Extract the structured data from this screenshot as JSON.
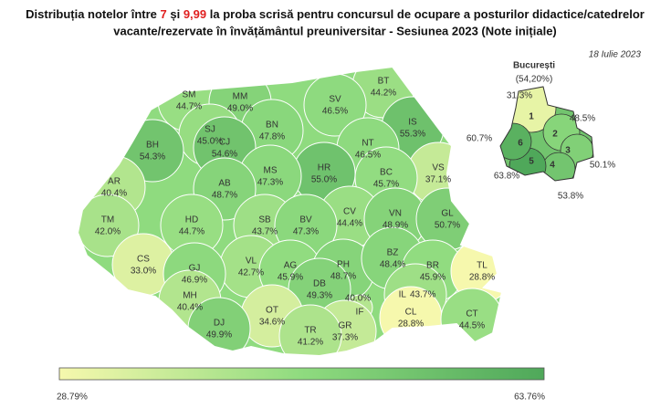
{
  "header": {
    "title_line1": [
      "Distribuția notelor între ",
      "7",
      " și ",
      "9,99",
      " la proba scrisă pentru concursul de ocupare a posturilor didactice/catedrelor"
    ],
    "title_line2": "vacante/rezervate în învățământul preuniversitar - Sesiunea 2023 (Note inițiale)",
    "date": "18 Iulie 2023"
  },
  "map": {
    "colorscale": [
      "#f6f8ad",
      "#8fdb7f",
      "#4fa85a"
    ],
    "counties": [
      {
        "code": "SM",
        "value": 44.7,
        "label": "44.7%"
      },
      {
        "code": "MM",
        "value": 49.0,
        "label": "49.0%"
      },
      {
        "code": "BT",
        "value": 44.2,
        "label": "44.2%"
      },
      {
        "code": "SV",
        "value": 46.5,
        "label": "46.5%"
      },
      {
        "code": "IS",
        "value": 55.3,
        "label": "55.3%"
      },
      {
        "code": "BN",
        "value": 47.8,
        "label": "47.8%"
      },
      {
        "code": "SJ",
        "value": 45.0,
        "label": "45.0%"
      },
      {
        "code": "BH",
        "value": 54.3,
        "label": "54.3%"
      },
      {
        "code": "CJ",
        "value": 54.6,
        "label": "54.6%"
      },
      {
        "code": "NT",
        "value": 46.5,
        "label": "46.5%"
      },
      {
        "code": "VS",
        "value": 37.1,
        "label": "37.1%"
      },
      {
        "code": "HR",
        "value": 55.0,
        "label": "55.0%"
      },
      {
        "code": "MS",
        "value": 47.3,
        "label": "47.3%"
      },
      {
        "code": "BC",
        "value": 45.7,
        "label": "45.7%"
      },
      {
        "code": "AR",
        "value": 40.4,
        "label": "40.4%"
      },
      {
        "code": "AB",
        "value": 48.7,
        "label": "48.7%"
      },
      {
        "code": "CV",
        "value": 44.4,
        "label": "44.4%"
      },
      {
        "code": "VN",
        "value": 48.9,
        "label": "48.9%"
      },
      {
        "code": "GL",
        "value": 50.7,
        "label": "50.7%"
      },
      {
        "code": "SB",
        "value": 43.7,
        "label": "43.7%"
      },
      {
        "code": "BV",
        "value": 47.3,
        "label": "47.3%"
      },
      {
        "code": "TM",
        "value": 42.0,
        "label": "42.0%"
      },
      {
        "code": "HD",
        "value": 44.7,
        "label": "44.7%"
      },
      {
        "code": "CS",
        "value": 33.0,
        "label": "33.0%"
      },
      {
        "code": "VL",
        "value": 42.7,
        "label": "42.7%"
      },
      {
        "code": "AG",
        "value": 45.9,
        "label": "45.9%"
      },
      {
        "code": "PH",
        "value": 48.7,
        "label": "48.7%"
      },
      {
        "code": "BZ",
        "value": 48.4,
        "label": "48.4%"
      },
      {
        "code": "BR",
        "value": 45.9,
        "label": "45.9%"
      },
      {
        "code": "TL",
        "value": 28.8,
        "label": "28.8%"
      },
      {
        "code": "GJ",
        "value": 46.9,
        "label": "46.9%"
      },
      {
        "code": "DB",
        "value": 49.3,
        "label": "49.3%"
      },
      {
        "code": "MH",
        "value": 40.4,
        "label": "40.4%"
      },
      {
        "code": "OT",
        "value": 34.6,
        "label": "34.6%"
      },
      {
        "code": "IF",
        "value": 40.0,
        "label": "40.0%"
      },
      {
        "code": "IL",
        "value": 43.7,
        "label": "43.7%"
      },
      {
        "code": "GR",
        "value": 37.3,
        "label": "37.3%"
      },
      {
        "code": "CL",
        "value": 28.8,
        "label": "28.8%"
      },
      {
        "code": "CT",
        "value": 44.5,
        "label": "44.5%"
      },
      {
        "code": "DJ",
        "value": 49.9,
        "label": "49.9%"
      },
      {
        "code": "TR",
        "value": 41.2,
        "label": "41.2%"
      }
    ],
    "bucharest": {
      "name": "București",
      "value": 54.2,
      "label": "(54,20%)",
      "sectors": [
        {
          "name": "1",
          "value": 31.3,
          "label": "31.3%"
        },
        {
          "name": "2",
          "value": 48.5,
          "label": "48.5%"
        },
        {
          "name": "3",
          "value": 50.1,
          "label": "50.1%"
        },
        {
          "name": "4",
          "value": 53.8,
          "label": "53.8%"
        },
        {
          "name": "5",
          "value": 63.8,
          "label": "63.8%"
        },
        {
          "name": "6",
          "value": 60.7,
          "label": "60.7%"
        }
      ]
    },
    "legend": {
      "min": {
        "value": 28.79,
        "label": "28.79%"
      },
      "max": {
        "value": 63.76,
        "label": "63.76%"
      }
    }
  }
}
